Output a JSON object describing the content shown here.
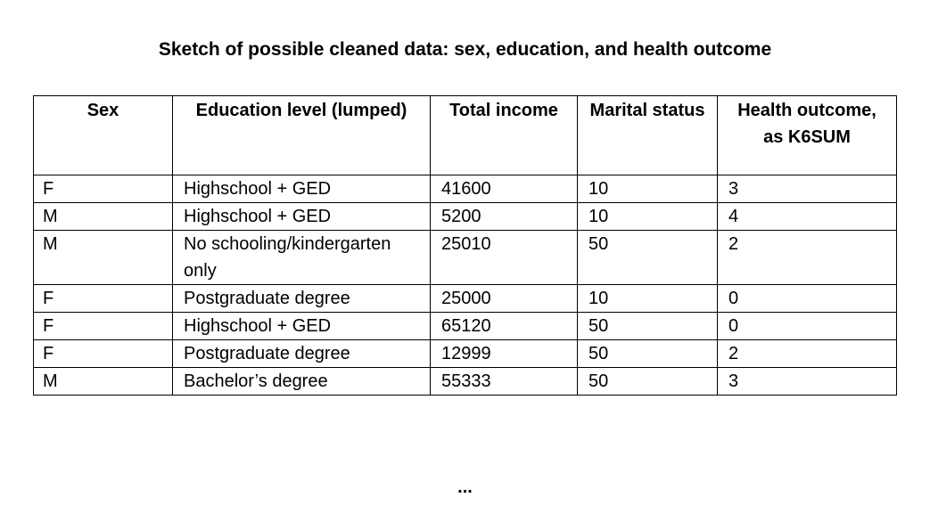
{
  "title": "Sketch of possible cleaned data: sex, education, and health outcome",
  "table": {
    "headers": [
      "Sex",
      "Education level (lumped)",
      "Total income",
      "Marital status",
      "Health outcome, as K6SUM"
    ],
    "rows": [
      [
        "F",
        "Highschool + GED",
        "41600",
        "10",
        "3"
      ],
      [
        "M",
        "Highschool + GED",
        "5200",
        "10",
        "4"
      ],
      [
        "M",
        "No schooling/kindergarten only",
        "25010",
        "50",
        "2"
      ],
      [
        "F",
        "Postgraduate degree",
        "25000",
        "10",
        "0"
      ],
      [
        "F",
        "Highschool + GED",
        "65120",
        "50",
        "0"
      ],
      [
        "F",
        "Postgraduate degree",
        "12999",
        "50",
        "2"
      ],
      [
        "M",
        "Bachelor’s degree",
        "55333",
        "50",
        "3"
      ]
    ]
  },
  "footer": {
    "ellipsis": "..."
  }
}
